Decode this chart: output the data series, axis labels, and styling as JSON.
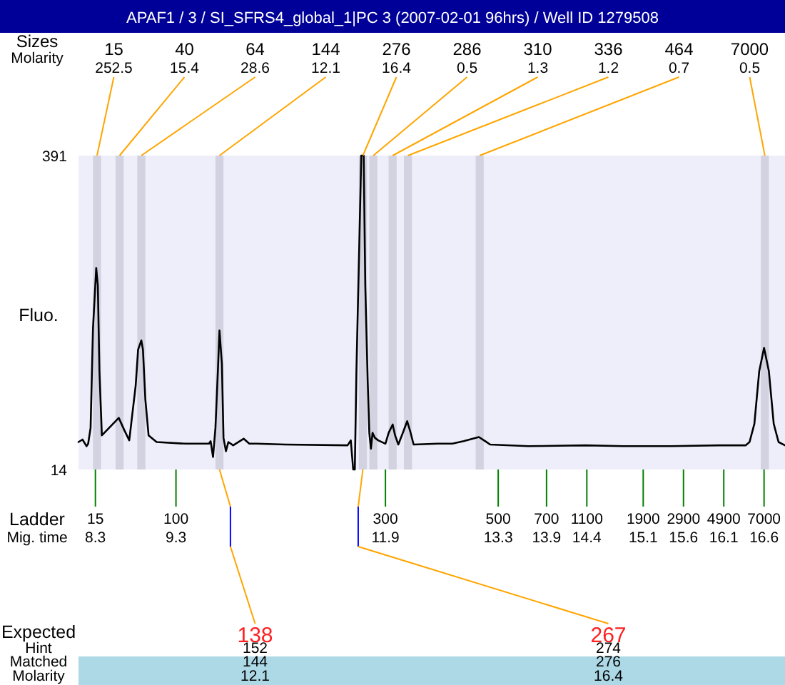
{
  "chart_data": {
    "type": "line",
    "title": "APAF1 / 3 / SI_SFRS4_global_1|PC 3 (2007-02-01 96hrs) / Well ID 1279508",
    "xlabel": "Mig. time",
    "ylabel": "Fluo.",
    "x": [
      8.09,
      8.14,
      8.19,
      8.21,
      8.24,
      8.27,
      8.31,
      8.33,
      8.35,
      8.38,
      8.47,
      8.59,
      8.66,
      8.72,
      8.8,
      8.83,
      8.87,
      8.89,
      8.92,
      8.96,
      9.06,
      9.42,
      9.71,
      9.73,
      9.76,
      9.79,
      9.82,
      9.84,
      9.87,
      9.89,
      9.92,
      9.95,
      10.01,
      10.14,
      10.21,
      10.3,
      10.66,
      11.43,
      11.47,
      11.5,
      11.52,
      11.54,
      11.58,
      11.6,
      11.63,
      11.65,
      11.68,
      11.7,
      11.72,
      11.74,
      11.77,
      11.81,
      11.9,
      11.94,
      11.99,
      12.02,
      12.06,
      12.12,
      12.17,
      12.21,
      12.25,
      12.55,
      12.73,
      12.87,
      13.06,
      13.14,
      13.2,
      13.67,
      14.38,
      14.85,
      15.45,
      16.04,
      16.37,
      16.42,
      16.48,
      16.54,
      16.6,
      16.66,
      16.72,
      16.78,
      16.86
    ],
    "values": [
      47,
      50,
      42,
      45,
      64,
      184,
      256,
      235,
      132,
      55,
      64,
      76,
      61,
      49,
      115,
      158,
      169,
      158,
      98,
      55,
      47,
      45,
      45,
      48,
      29,
      64,
      132,
      181,
      141,
      52,
      36,
      47,
      43,
      51,
      45,
      45,
      44,
      43,
      49,
      14,
      14,
      132,
      304,
      391,
      391,
      235,
      120,
      58,
      39,
      58,
      52,
      49,
      45,
      58,
      68,
      55,
      44,
      59,
      72,
      59,
      44,
      45,
      45,
      48,
      53,
      48,
      44,
      42,
      43,
      42,
      42,
      43,
      43,
      47,
      69,
      132,
      160,
      132,
      69,
      47,
      43
    ],
    "color": "#000000",
    "xlim": [
      8.09,
      16.86
    ],
    "ylim": [
      14,
      391
    ],
    "yticks": [
      14,
      391
    ],
    "xticks": [
      8.3,
      9.3,
      11.9,
      13.3,
      13.9,
      14.4,
      15.1,
      15.6,
      16.1,
      16.6
    ],
    "bands": [
      {
        "axis": "x",
        "from": 8.27,
        "to": 8.37,
        "label": "15",
        "color": "#d2d2e0"
      },
      {
        "axis": "x",
        "from": 8.55,
        "to": 8.65,
        "label": "40",
        "color": "#d2d2e0"
      },
      {
        "axis": "x",
        "from": 8.82,
        "to": 8.92,
        "label": "64",
        "color": "#d2d2e0"
      },
      {
        "axis": "x",
        "from": 9.79,
        "to": 9.89,
        "label": "144",
        "color": "#d2d2e0"
      },
      {
        "axis": "x",
        "from": 11.57,
        "to": 11.67,
        "label": "276",
        "color": "#d2d2e0"
      },
      {
        "axis": "x",
        "from": 11.7,
        "to": 11.8,
        "label": "286",
        "color": "#d2d2e0"
      },
      {
        "axis": "x",
        "from": 11.94,
        "to": 12.04,
        "label": "310",
        "color": "#d2d2e0"
      },
      {
        "axis": "x",
        "from": 12.13,
        "to": 12.23,
        "label": "336",
        "color": "#d2d2e0"
      },
      {
        "axis": "x",
        "from": 13.02,
        "to": 13.12,
        "label": "464",
        "color": "#d2d2e0"
      },
      {
        "axis": "x",
        "from": 16.56,
        "to": 16.66,
        "label": "7000",
        "color": "#d2d2e0"
      }
    ],
    "annotations": [
      "Sizes",
      "Molarity",
      {
        "text": "252.5",
        "x": 8.32,
        "y": 391
      },
      {
        "text": "15.4",
        "x": 8.6,
        "y": 391
      },
      {
        "text": "28.6",
        "x": 8.87,
        "y": 391
      },
      {
        "text": "12.1",
        "x": 9.84,
        "y": 391
      },
      {
        "text": "16.4",
        "x": 11.62,
        "y": 391
      },
      {
        "text": "0.5",
        "x": 11.75,
        "y": 391
      },
      {
        "text": "1.3",
        "x": 11.99,
        "y": 391
      },
      {
        "text": "1.2",
        "x": 12.18,
        "y": 391
      },
      {
        "text": "0.7",
        "x": 13.07,
        "y": 391
      },
      {
        "text": "0.5",
        "x": 16.61,
        "y": 391
      },
      "Ladder",
      "15",
      "100",
      "300",
      "500",
      "700",
      "1100",
      "1900",
      "2900",
      "4900",
      "7000",
      "Expected",
      "138",
      "267",
      "Hint",
      "152",
      "274",
      "Matched",
      "144",
      "276",
      "Molarity",
      "12.1",
      "16.4"
    ]
  }
}
